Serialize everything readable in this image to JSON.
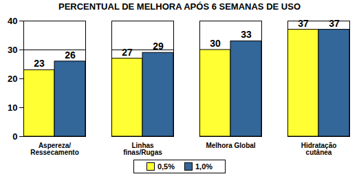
{
  "chart_data": {
    "type": "bar",
    "title": "PERCENTUAL DE MELHORA APÓS 6 SEMANAS DE USO",
    "categories": [
      "Aspereza/\nRessecamento",
      "Linhas\nfinas/Rugas",
      "Melhora Global",
      "Hidratação\ncutânea"
    ],
    "series": [
      {
        "name": "0,5%",
        "color": "#ffff33",
        "values": [
          23,
          27,
          30,
          37
        ]
      },
      {
        "name": "1,0%",
        "color": "#336699",
        "values": [
          26,
          29,
          33,
          37
        ]
      }
    ],
    "ylim": [
      0,
      40
    ],
    "yticks": [
      0,
      10,
      20,
      30,
      40
    ],
    "grid": true,
    "data_labels": true,
    "legend": "bottom"
  }
}
